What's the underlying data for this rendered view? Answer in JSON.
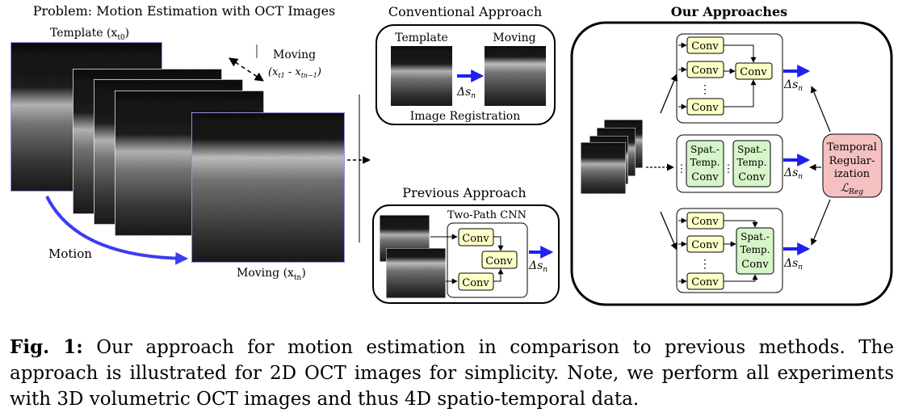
{
  "problem": {
    "title": "Problem: Motion Estimation with OCT Images",
    "template_label": "Template (x",
    "template_sub": "t0",
    "template_close": ")",
    "moving_top_label": "Moving",
    "moving_range": "(x_{t1} - x_{t_{n-1}})",
    "moving_bottom_label": "Moving (x",
    "moving_bottom_sub": "tn",
    "moving_bottom_close": ")",
    "motion_label": "Motion"
  },
  "conventional": {
    "title": "Conventional Approach",
    "template_label": "Template",
    "moving_label": "Moving",
    "delta_label": "Δs",
    "delta_sub": "n",
    "footer": "Image Registration"
  },
  "previous": {
    "title": "Previous Approach",
    "cnn_label": "Two-Path CNN",
    "conv_label": "Conv",
    "delta_label": "Δs",
    "delta_sub": "n"
  },
  "ours": {
    "title": "Our Approaches",
    "conv_label": "Conv",
    "spat_label_1": "Spat.-",
    "spat_label_2": "Temp.",
    "spat_label_3": "Conv",
    "dots": "⋮",
    "delta_label": "Δs",
    "delta_sub": "n",
    "reg_label_1": "Temporal",
    "reg_label_2": "Regular-",
    "reg_label_3": "ization",
    "reg_symbol": "ℒ",
    "reg_sub": "Reg"
  },
  "caption": {
    "fig_label": "Fig. 1:",
    "text": "Our approach for motion estimation in comparison to previous methods. The approach is illustrated for 2D OCT images for simplicity. Note, we perform all experiments with 3D volumetric OCT images and thus 4D spatio-temporal data."
  },
  "colors": {
    "conv_fill": "#ffffc8",
    "spat_fill": "#d6f5c8",
    "reg_fill": "#f5c0c0",
    "arrow_blue": "#1f1ff0",
    "motion_blue": "#3c3cf0",
    "frame_blue": "#9a9af0"
  }
}
